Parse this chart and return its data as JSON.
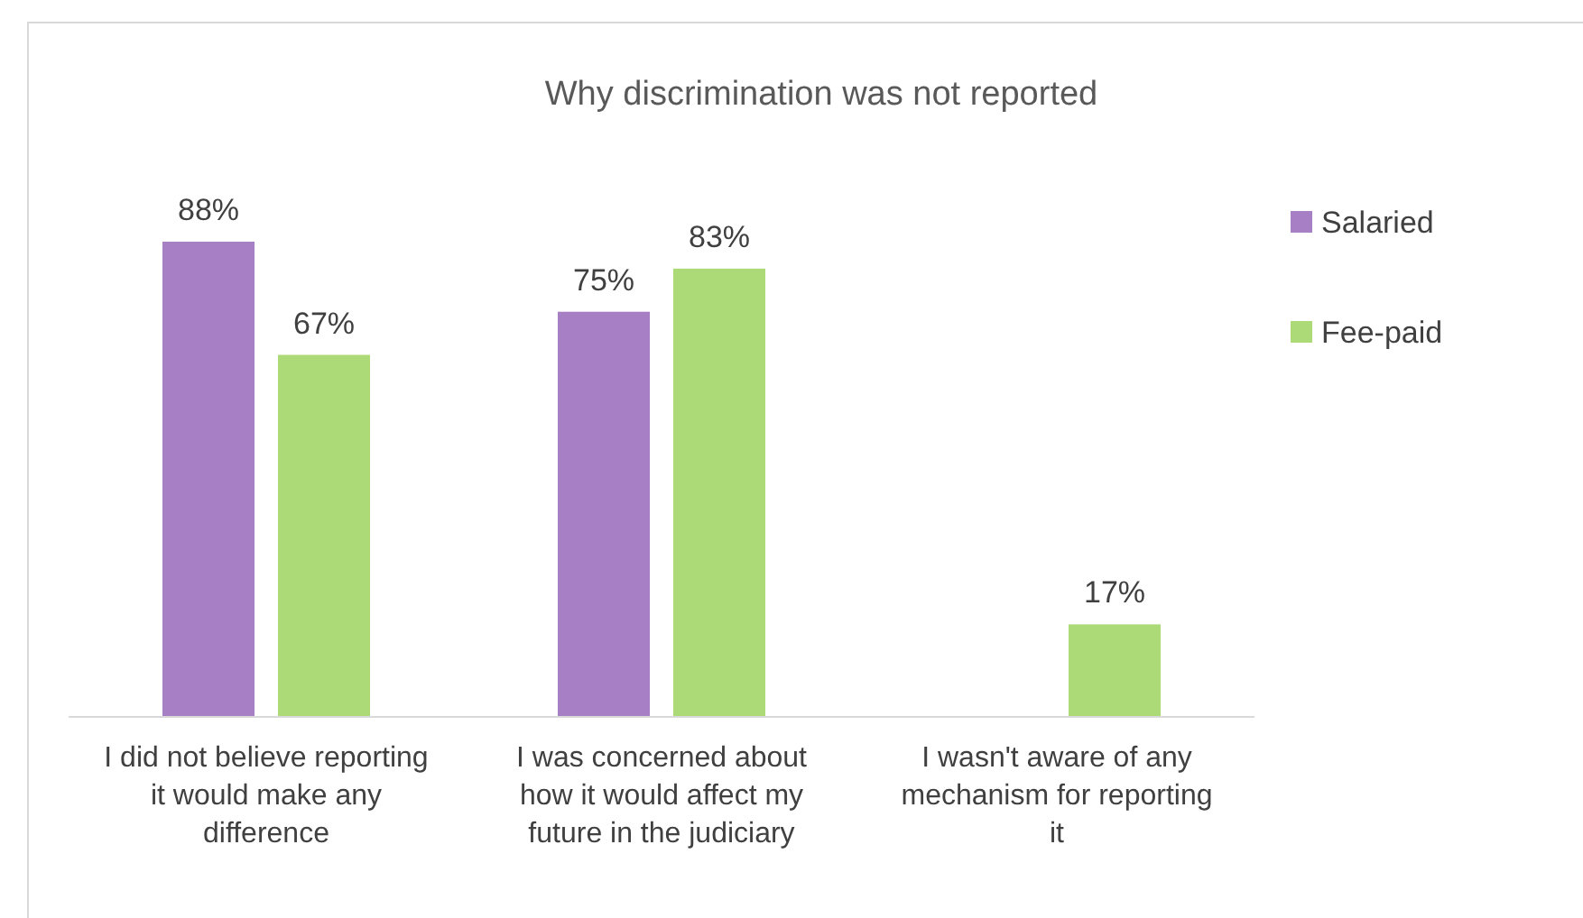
{
  "chart_data": {
    "type": "bar",
    "title": "Why discrimination was not reported",
    "categories": [
      "I did not believe reporting it would make any difference",
      "I was concerned about how it would affect my future in the judiciary",
      "I wasn't aware of any mechanism for reporting it"
    ],
    "series": [
      {
        "name": "Salaried",
        "color": "#a67fc4",
        "values": [
          88,
          75,
          null
        ],
        "value_labels": [
          "88%",
          "75%",
          null
        ]
      },
      {
        "name": "Fee-paid",
        "color": "#abda76",
        "values": [
          67,
          83,
          17
        ],
        "value_labels": [
          "67%",
          "83%",
          "17%"
        ]
      }
    ],
    "tick_labels": "x",
    "legend": "right"
  }
}
